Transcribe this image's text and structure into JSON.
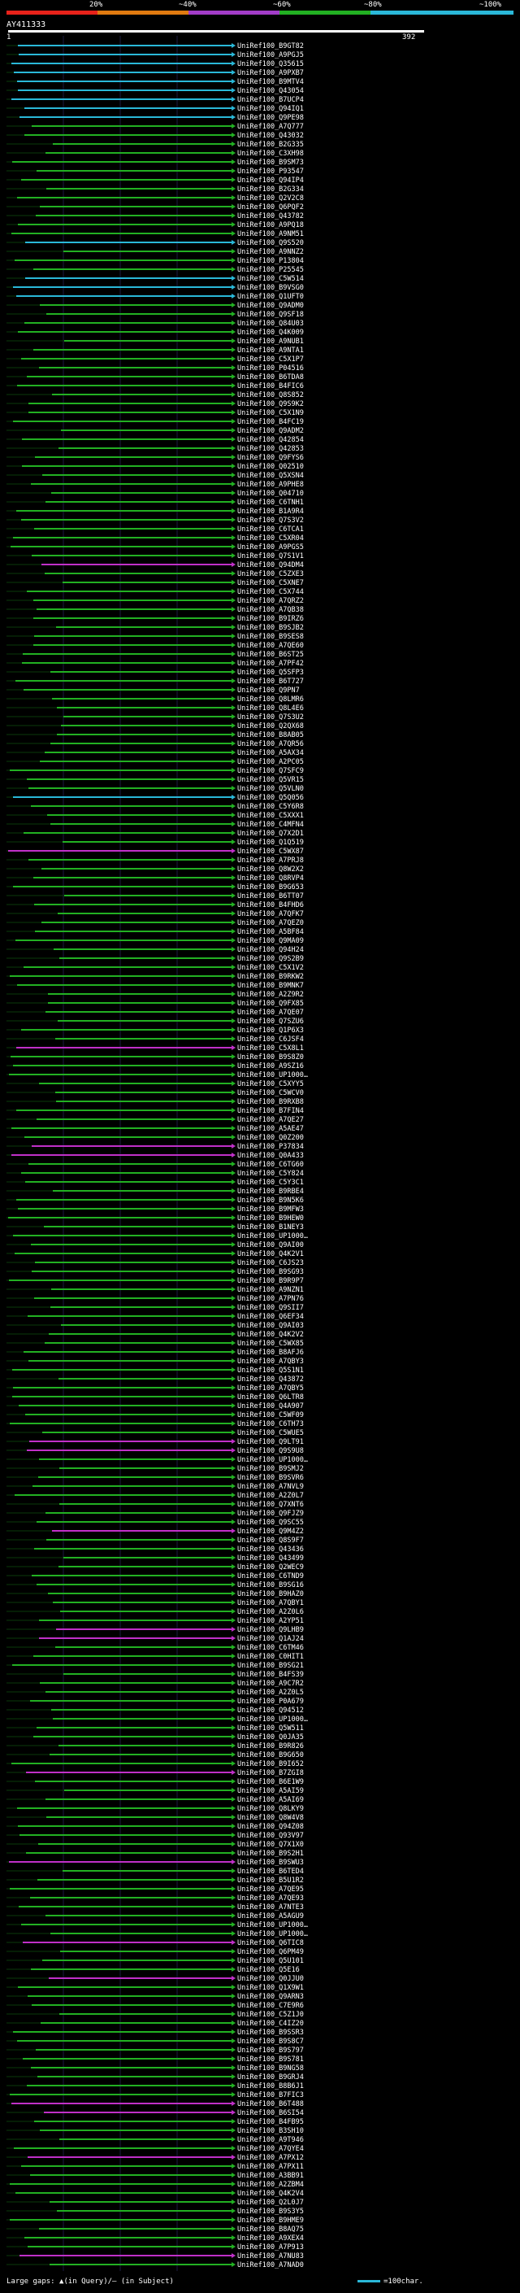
{
  "legend": {
    "labels": [
      "20%",
      "~40%",
      "~60%",
      "~80%",
      "~100%"
    ],
    "colors": [
      "#e8221a",
      "#e07a10",
      "#a23cc8",
      "#22b022",
      "#2ab8d8"
    ]
  },
  "query": {
    "id": "AY411333",
    "start": "1",
    "end": "392"
  },
  "footer": {
    "gaps_text": "Large gaps: ▲(in Query)/– (in Subject)",
    "scale_text": "=100char."
  },
  "hits": [
    {
      "label": "UniRef100_B9GT82",
      "c": "cyan"
    },
    {
      "label": "UniRef100_A9PGJ5",
      "c": "cyan"
    },
    {
      "label": "UniRef100_Q35615",
      "c": "cyan"
    },
    {
      "label": "UniRef100_A9PXB7",
      "c": "cyan"
    },
    {
      "label": "UniRef100_B9MTV4",
      "c": "cyan"
    },
    {
      "label": "UniRef100_Q43054",
      "c": "cyan"
    },
    {
      "label": "UniRef100_B7UCP4",
      "c": "cyan"
    },
    {
      "label": "UniRef100_Q94IQ1",
      "c": "cyan"
    },
    {
      "label": "UniRef100_Q9PE98",
      "c": "cyan"
    },
    {
      "label": "UniRef100_A7Q777",
      "c": "green"
    },
    {
      "label": "UniRef100_Q43032",
      "c": "green"
    },
    {
      "label": "UniRef100_B2G335",
      "c": "green"
    },
    {
      "label": "UniRef100_C3XH98",
      "c": "green"
    },
    {
      "label": "UniRef100_B9SM73",
      "c": "green"
    },
    {
      "label": "UniRef100_P93547",
      "c": "green"
    },
    {
      "label": "UniRef100_Q94IP4",
      "c": "green"
    },
    {
      "label": "UniRef100_B2G334",
      "c": "green"
    },
    {
      "label": "UniRef100_Q2V2C8",
      "c": "green"
    },
    {
      "label": "UniRef100_Q6PQF2",
      "c": "green"
    },
    {
      "label": "UniRef100_Q43782",
      "c": "green"
    },
    {
      "label": "UniRef100_A9PQ18",
      "c": "green"
    },
    {
      "label": "UniRef100_A9NM51",
      "c": "green"
    },
    {
      "label": "UniRef100_Q9S520",
      "c": "cyan"
    },
    {
      "label": "UniRef100_A9NNZ2",
      "c": "green"
    },
    {
      "label": "UniRef100_P13804",
      "c": "green"
    },
    {
      "label": "UniRef100_P25545",
      "c": "green"
    },
    {
      "label": "UniRef100_C5W514",
      "c": "cyan"
    },
    {
      "label": "UniRef100_B9VSG0",
      "c": "cyan"
    },
    {
      "label": "UniRef100_Q1UFT0",
      "c": "cyan"
    },
    {
      "label": "UniRef100_Q9ADM0",
      "c": "green"
    },
    {
      "label": "UniRef100_Q9SF18",
      "c": "green"
    },
    {
      "label": "UniRef100_Q84U03",
      "c": "green"
    },
    {
      "label": "UniRef100_Q4K009",
      "c": "green"
    },
    {
      "label": "UniRef100_A9NUB1",
      "c": "green"
    },
    {
      "label": "UniRef100_A9NTA1",
      "c": "green"
    },
    {
      "label": "UniRef100_C5X1P7",
      "c": "green"
    },
    {
      "label": "UniRef100_P04516",
      "c": "green"
    },
    {
      "label": "UniRef100_B6TDA8",
      "c": "green"
    },
    {
      "label": "UniRef100_B4FIC6",
      "c": "green"
    },
    {
      "label": "UniRef100_Q8S852",
      "c": "green"
    },
    {
      "label": "UniRef100_Q9S9K2",
      "c": "green"
    },
    {
      "label": "UniRef100_C5X1N9",
      "c": "green"
    },
    {
      "label": "UniRef100_B4FC19",
      "c": "green"
    },
    {
      "label": "UniRef100_Q9ADM2",
      "c": "green"
    },
    {
      "label": "UniRef100_Q42854",
      "c": "green"
    },
    {
      "label": "UniRef100_Q42853",
      "c": "green"
    },
    {
      "label": "UniRef100_Q9FYS6",
      "c": "green"
    },
    {
      "label": "UniRef100_Q02510",
      "c": "green"
    },
    {
      "label": "UniRef100_Q5XSN4",
      "c": "green"
    },
    {
      "label": "UniRef100_A9PHE8",
      "c": "green"
    },
    {
      "label": "UniRef100_Q04710",
      "c": "green"
    },
    {
      "label": "UniRef100_C6TNH1",
      "c": "green"
    },
    {
      "label": "UniRef100_B1A9R4",
      "c": "green"
    },
    {
      "label": "UniRef100_Q7S3V2",
      "c": "green"
    },
    {
      "label": "UniRef100_C6TCA1",
      "c": "green"
    },
    {
      "label": "UniRef100_C5XR04",
      "c": "green"
    },
    {
      "label": "UniRef100_A9PGS5",
      "c": "green"
    },
    {
      "label": "UniRef100_Q7S1V1",
      "c": "green"
    },
    {
      "label": "UniRef100_Q94DM4",
      "c": "magenta"
    },
    {
      "label": "UniRef100_C5ZXE3",
      "c": "green"
    },
    {
      "label": "UniRef100_C5XNE7",
      "c": "green"
    },
    {
      "label": "UniRef100_C5X744",
      "c": "green"
    },
    {
      "label": "UniRef100_A7QRZ2",
      "c": "green"
    },
    {
      "label": "UniRef100_A7QB38",
      "c": "green"
    },
    {
      "label": "UniRef100_B9IRZ6",
      "c": "green"
    },
    {
      "label": "UniRef100_B9SJB2",
      "c": "green"
    },
    {
      "label": "UniRef100_B9SES8",
      "c": "green"
    },
    {
      "label": "UniRef100_A7QE60",
      "c": "green"
    },
    {
      "label": "UniRef100_B6ST25",
      "c": "green"
    },
    {
      "label": "UniRef100_A7PF42",
      "c": "green"
    },
    {
      "label": "UniRef100_Q5SFP3",
      "c": "green"
    },
    {
      "label": "UniRef100_B6T727",
      "c": "green"
    },
    {
      "label": "UniRef100_Q9PN7",
      "c": "green"
    },
    {
      "label": "UniRef100_Q8LMR6",
      "c": "green"
    },
    {
      "label": "UniRef100_Q8L4E6",
      "c": "green"
    },
    {
      "label": "UniRef100_Q7S3U2",
      "c": "green"
    },
    {
      "label": "UniRef100_Q2QX68",
      "c": "green"
    },
    {
      "label": "UniRef100_B8AB05",
      "c": "green"
    },
    {
      "label": "UniRef100_A7QR56",
      "c": "green"
    },
    {
      "label": "UniRef100_A5AX34",
      "c": "green"
    },
    {
      "label": "UniRef100_A2PC05",
      "c": "green"
    },
    {
      "label": "UniRef100_Q7SFC9",
      "c": "green"
    },
    {
      "label": "UniRef100_Q5VR15",
      "c": "green"
    },
    {
      "label": "UniRef100_Q5VLN0",
      "c": "green"
    },
    {
      "label": "UniRef100_Q5Q056",
      "c": "cyan"
    },
    {
      "label": "UniRef100_C5Y6R8",
      "c": "green"
    },
    {
      "label": "UniRef100_C5XXX1",
      "c": "green"
    },
    {
      "label": "UniRef100_C4MFN4",
      "c": "green"
    },
    {
      "label": "UniRef100_Q7X2D1",
      "c": "green"
    },
    {
      "label": "UniRef100_Q1Q519",
      "c": "green"
    },
    {
      "label": "UniRef100_C5WX87",
      "c": "magenta"
    },
    {
      "label": "UniRef100_A7PRJ8",
      "c": "green"
    },
    {
      "label": "UniRef100_Q8W2X2",
      "c": "green"
    },
    {
      "label": "UniRef100_Q8RVP4",
      "c": "green"
    },
    {
      "label": "UniRef100_B9G653",
      "c": "green"
    },
    {
      "label": "UniRef100_B6TT07",
      "c": "green"
    },
    {
      "label": "UniRef100_B4FHD6",
      "c": "green"
    },
    {
      "label": "UniRef100_A7QFK7",
      "c": "green"
    },
    {
      "label": "UniRef100_A7QEZ0",
      "c": "green"
    },
    {
      "label": "UniRef100_A5BF84",
      "c": "green"
    },
    {
      "label": "UniRef100_Q9MA09",
      "c": "green"
    },
    {
      "label": "UniRef100_Q94H24",
      "c": "green"
    },
    {
      "label": "UniRef100_Q9S2B9",
      "c": "green"
    },
    {
      "label": "UniRef100_C5X1V2",
      "c": "green"
    },
    {
      "label": "UniRef100_B9RKW2",
      "c": "green"
    },
    {
      "label": "UniRef100_B9MNK7",
      "c": "green"
    },
    {
      "label": "UniRef100_A2Z9R2",
      "c": "green"
    },
    {
      "label": "UniRef100_Q9FX85",
      "c": "green"
    },
    {
      "label": "UniRef100_A7QE07",
      "c": "green"
    },
    {
      "label": "UniRef100_Q7SZU6",
      "c": "green"
    },
    {
      "label": "UniRef100_Q1P6X3",
      "c": "green"
    },
    {
      "label": "UniRef100_C6JSF4",
      "c": "green"
    },
    {
      "label": "UniRef100_C5X8L1",
      "c": "magenta"
    },
    {
      "label": "UniRef100_B9S8Z0",
      "c": "green"
    },
    {
      "label": "UniRef100_A9SZ16",
      "c": "green"
    },
    {
      "label": "UniRef100_UP1000…",
      "c": "green"
    },
    {
      "label": "UniRef100_C5XYY5",
      "c": "green"
    },
    {
      "label": "UniRef100_C5WCV0",
      "c": "green"
    },
    {
      "label": "UniRef100_B9RXB8",
      "c": "green"
    },
    {
      "label": "UniRef100_B7FIN4",
      "c": "green"
    },
    {
      "label": "UniRef100_A7QE27",
      "c": "green"
    },
    {
      "label": "UniRef100_A5AE47",
      "c": "green"
    },
    {
      "label": "UniRef100_Q0Z200",
      "c": "green"
    },
    {
      "label": "UniRef100_P37834",
      "c": "magenta"
    },
    {
      "label": "UniRef100_Q0A433",
      "c": "magenta"
    },
    {
      "label": "UniRef100_C6TG60",
      "c": "green"
    },
    {
      "label": "UniRef100_C5Y824",
      "c": "green"
    },
    {
      "label": "UniRef100_C5Y3C1",
      "c": "green"
    },
    {
      "label": "UniRef100_B9RBE4",
      "c": "green"
    },
    {
      "label": "UniRef100_B9N5K6",
      "c": "green"
    },
    {
      "label": "UniRef100_B9MFW3",
      "c": "green"
    },
    {
      "label": "UniRef100_B9HEW0",
      "c": "green"
    },
    {
      "label": "UniRef100_B1NEY3",
      "c": "green"
    },
    {
      "label": "UniRef100_UP1000…",
      "c": "green"
    },
    {
      "label": "UniRef100_Q9AI00",
      "c": "green"
    },
    {
      "label": "UniRef100_Q4K2V1",
      "c": "green"
    },
    {
      "label": "UniRef100_C6JS23",
      "c": "green"
    },
    {
      "label": "UniRef100_B9SG93",
      "c": "green"
    },
    {
      "label": "UniRef100_B9R9P7",
      "c": "green"
    },
    {
      "label": "UniRef100_A9NZN1",
      "c": "green"
    },
    {
      "label": "UniRef100_A7PN76",
      "c": "green"
    },
    {
      "label": "UniRef100_Q9SII7",
      "c": "green"
    },
    {
      "label": "UniRef100_Q6EF34",
      "c": "green"
    },
    {
      "label": "UniRef100_Q9AI03",
      "c": "green"
    },
    {
      "label": "UniRef100_Q4K2V2",
      "c": "green"
    },
    {
      "label": "UniRef100_C5WX85",
      "c": "green"
    },
    {
      "label": "UniRef100_B8AFJ6",
      "c": "green"
    },
    {
      "label": "UniRef100_A7QBY3",
      "c": "green"
    },
    {
      "label": "UniRef100_Q5S1N1",
      "c": "green"
    },
    {
      "label": "UniRef100_Q43872",
      "c": "green"
    },
    {
      "label": "UniRef100_A7QBY5",
      "c": "green"
    },
    {
      "label": "UniRef100_Q6LTR8",
      "c": "green"
    },
    {
      "label": "UniRef100_Q4A907",
      "c": "green"
    },
    {
      "label": "UniRef100_C5WF09",
      "c": "green"
    },
    {
      "label": "UniRef100_C6TH73",
      "c": "green"
    },
    {
      "label": "UniRef100_C5WUE5",
      "c": "green"
    },
    {
      "label": "UniRef100_Q9LT91",
      "c": "magenta"
    },
    {
      "label": "UniRef100_Q9S9U8",
      "c": "magenta"
    },
    {
      "label": "UniRef100_UP1000…",
      "c": "green"
    },
    {
      "label": "UniRef100_B9SMJ2",
      "c": "green"
    },
    {
      "label": "UniRef100_B9SVR6",
      "c": "green"
    },
    {
      "label": "UniRef100_A7NVL9",
      "c": "green"
    },
    {
      "label": "UniRef100_A2Z0L7",
      "c": "green"
    },
    {
      "label": "UniRef100_Q7XNT6",
      "c": "green"
    },
    {
      "label": "UniRef100_Q9FJZ9",
      "c": "green"
    },
    {
      "label": "UniRef100_Q9SC55",
      "c": "green"
    },
    {
      "label": "UniRef100_Q9M4Z2",
      "c": "magenta"
    },
    {
      "label": "UniRef100_Q8S9F7",
      "c": "green"
    },
    {
      "label": "UniRef100_Q43436",
      "c": "green"
    },
    {
      "label": "UniRef100_Q43499",
      "c": "green"
    },
    {
      "label": "UniRef100_Q2WEC9",
      "c": "green"
    },
    {
      "label": "UniRef100_C6TND9",
      "c": "green"
    },
    {
      "label": "UniRef100_B9SG16",
      "c": "green"
    },
    {
      "label": "UniRef100_B9HAZ0",
      "c": "green"
    },
    {
      "label": "UniRef100_A7QBY1",
      "c": "green"
    },
    {
      "label": "UniRef100_A2Z0L6",
      "c": "green"
    },
    {
      "label": "UniRef100_A2YP51",
      "c": "green"
    },
    {
      "label": "UniRef100_Q9LHB9",
      "c": "magenta"
    },
    {
      "label": "UniRef100_Q1AJ24",
      "c": "magenta"
    },
    {
      "label": "UniRef100_C6TM46",
      "c": "green"
    },
    {
      "label": "UniRef100_C0HIT1",
      "c": "green"
    },
    {
      "label": "UniRef100_B9SG21",
      "c": "green"
    },
    {
      "label": "UniRef100_B4FS39",
      "c": "green"
    },
    {
      "label": "UniRef100_A9C7R2",
      "c": "green"
    },
    {
      "label": "UniRef100_A2Z0L5",
      "c": "green"
    },
    {
      "label": "UniRef100_P0A679",
      "c": "green"
    },
    {
      "label": "UniRef100_Q94512",
      "c": "green"
    },
    {
      "label": "UniRef100_UP1000…",
      "c": "green"
    },
    {
      "label": "UniRef100_Q5W511",
      "c": "green"
    },
    {
      "label": "UniRef100_Q0JA35",
      "c": "green"
    },
    {
      "label": "UniRef100_B9R826",
      "c": "green"
    },
    {
      "label": "UniRef100_B9G650",
      "c": "green"
    },
    {
      "label": "UniRef100_B9I652",
      "c": "green"
    },
    {
      "label": "UniRef100_B7ZGI8",
      "c": "magenta"
    },
    {
      "label": "UniRef100_B6E1W9",
      "c": "green"
    },
    {
      "label": "UniRef100_A5AI59",
      "c": "green"
    },
    {
      "label": "UniRef100_A5AI69",
      "c": "green"
    },
    {
      "label": "UniRef100_Q8LKY9",
      "c": "green"
    },
    {
      "label": "UniRef100_Q8W4V8",
      "c": "green"
    },
    {
      "label": "UniRef100_Q94Z08",
      "c": "green"
    },
    {
      "label": "UniRef100_Q93V97",
      "c": "green"
    },
    {
      "label": "UniRef100_Q7X1X0",
      "c": "green"
    },
    {
      "label": "UniRef100_B9S2H1",
      "c": "green"
    },
    {
      "label": "UniRef100_B9SWU3",
      "c": "magenta"
    },
    {
      "label": "UniRef100_B6TED4",
      "c": "green"
    },
    {
      "label": "UniRef100_B5U1R2",
      "c": "green"
    },
    {
      "label": "UniRef100_A7QE95",
      "c": "green"
    },
    {
      "label": "UniRef100_A7QE93",
      "c": "green"
    },
    {
      "label": "UniRef100_A7NTE3",
      "c": "green"
    },
    {
      "label": "UniRef100_A5AGU9",
      "c": "green"
    },
    {
      "label": "UniRef100_UP1000…",
      "c": "green"
    },
    {
      "label": "UniRef100_UP1000…",
      "c": "green"
    },
    {
      "label": "UniRef100_Q6TIC8",
      "c": "magenta"
    },
    {
      "label": "UniRef100_Q6PM49",
      "c": "green"
    },
    {
      "label": "UniRef100_Q5U101",
      "c": "green"
    },
    {
      "label": "UniRef100_Q5E16",
      "c": "green"
    },
    {
      "label": "UniRef100_Q0JJU0",
      "c": "magenta"
    },
    {
      "label": "UniRef100_Q1X9W1",
      "c": "green"
    },
    {
      "label": "UniRef100_Q9ARN3",
      "c": "green"
    },
    {
      "label": "UniRef100_C7E9R6",
      "c": "green"
    },
    {
      "label": "UniRef100_C5Z1J0",
      "c": "green"
    },
    {
      "label": "UniRef100_C4IZ20",
      "c": "green"
    },
    {
      "label": "UniRef100_B9SSR3",
      "c": "green"
    },
    {
      "label": "UniRef100_B9S8C7",
      "c": "green"
    },
    {
      "label": "UniRef100_B9S797",
      "c": "green"
    },
    {
      "label": "UniRef100_B9S781",
      "c": "green"
    },
    {
      "label": "UniRef100_B9NG58",
      "c": "green"
    },
    {
      "label": "UniRef100_B9GRJ4",
      "c": "green"
    },
    {
      "label": "UniRef100_B8B6J1",
      "c": "green"
    },
    {
      "label": "UniRef100_B7FIC3",
      "c": "green"
    },
    {
      "label": "UniRef100_B6T488",
      "c": "magenta"
    },
    {
      "label": "UniRef100_B6SI54",
      "c": "magenta"
    },
    {
      "label": "UniRef100_B4FB95",
      "c": "green"
    },
    {
      "label": "UniRef100_B3SH10",
      "c": "green"
    },
    {
      "label": "UniRef100_A9T946",
      "c": "green"
    },
    {
      "label": "UniRef100_A7QYE4",
      "c": "green"
    },
    {
      "label": "UniRef100_A7PX12",
      "c": "magenta"
    },
    {
      "label": "UniRef100_A7PX11",
      "c": "green"
    },
    {
      "label": "UniRef100_A3BB91",
      "c": "green"
    },
    {
      "label": "UniRef100_A2ZBM4",
      "c": "green"
    },
    {
      "label": "UniRef100_Q4K2V4",
      "c": "green"
    },
    {
      "label": "UniRef100_Q2L0J7",
      "c": "green"
    },
    {
      "label": "UniRef100_B9S3Y5",
      "c": "green"
    },
    {
      "label": "UniRef100_B9HME9",
      "c": "green"
    },
    {
      "label": "UniRef100_B8AQ75",
      "c": "green"
    },
    {
      "label": "UniRef100_A9XEX4",
      "c": "green"
    },
    {
      "label": "UniRef100_A7P913",
      "c": "green"
    },
    {
      "label": "UniRef100_A7NU83",
      "c": "magenta"
    },
    {
      "label": "UniRef100_A7NAD0",
      "c": "green"
    }
  ]
}
